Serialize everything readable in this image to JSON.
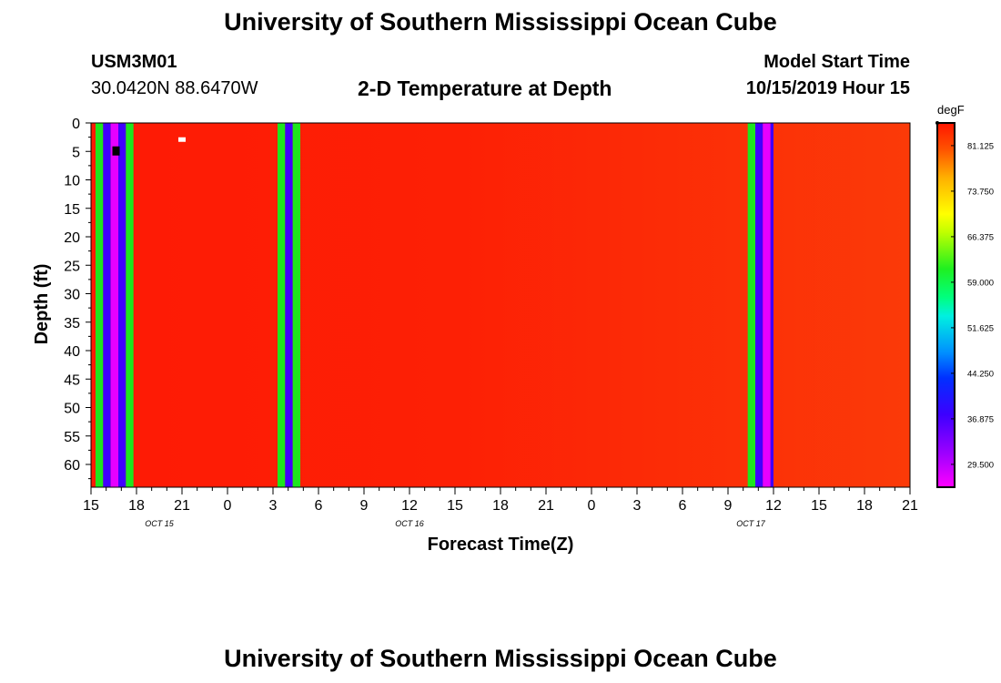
{
  "header": {
    "title": "University of Southern Mississippi Ocean Cube",
    "station_id": "USM3M01",
    "coordinates": "30.0420N 88.6470W",
    "plot_title": "2-D Temperature at Depth",
    "model_label": "Model Start Time",
    "model_time": "10/15/2019 Hour 15"
  },
  "footer": {
    "title": "University of Southern Mississippi Ocean Cube"
  },
  "chart_data": {
    "type": "heatmap",
    "title": "2-D Temperature at Depth",
    "xlabel": "Forecast Time(Z)",
    "ylabel": "Depth (ft)",
    "x_range_hours": [
      0,
      54
    ],
    "x_ticks": [
      {
        "hour": 0,
        "label": "15"
      },
      {
        "hour": 3,
        "label": "18"
      },
      {
        "hour": 6,
        "label": "21"
      },
      {
        "hour": 9,
        "label": "0"
      },
      {
        "hour": 12,
        "label": "3"
      },
      {
        "hour": 15,
        "label": "6"
      },
      {
        "hour": 18,
        "label": "9"
      },
      {
        "hour": 21,
        "label": "12"
      },
      {
        "hour": 24,
        "label": "15"
      },
      {
        "hour": 27,
        "label": "18"
      },
      {
        "hour": 30,
        "label": "21"
      },
      {
        "hour": 33,
        "label": "0"
      },
      {
        "hour": 36,
        "label": "3"
      },
      {
        "hour": 39,
        "label": "6"
      },
      {
        "hour": 42,
        "label": "9"
      },
      {
        "hour": 45,
        "label": "12"
      },
      {
        "hour": 48,
        "label": "15"
      },
      {
        "hour": 51,
        "label": "18"
      },
      {
        "hour": 54,
        "label": "21"
      }
    ],
    "date_labels": [
      {
        "hour": 4.5,
        "label": "OCT 15"
      },
      {
        "hour": 21,
        "label": "OCT 16"
      },
      {
        "hour": 43.5,
        "label": "OCT 17"
      }
    ],
    "y_range_ft": [
      0,
      64
    ],
    "y_ticks": [
      0,
      5,
      10,
      15,
      20,
      25,
      30,
      35,
      40,
      45,
      50,
      55,
      60
    ],
    "colorbar": {
      "unit": "degF",
      "min": 25.8,
      "max": 84.8,
      "labels": [
        "81.125",
        "73.750",
        "66.375",
        "59.000",
        "51.625",
        "44.250",
        "36.875",
        "29.500"
      ],
      "label_values": [
        81.125,
        73.75,
        66.375,
        59.0,
        51.625,
        44.25,
        36.875,
        29.5
      ]
    },
    "background_temperature_degF": 83.0,
    "vertical_bands": [
      {
        "start_hour": 0.3,
        "end_hour": 0.8,
        "value": 59.0
      },
      {
        "start_hour": 0.8,
        "end_hour": 1.3,
        "value": 34.0
      },
      {
        "start_hour": 1.3,
        "end_hour": 1.8,
        "value": 26.5
      },
      {
        "start_hour": 1.8,
        "end_hour": 2.3,
        "value": 34.0
      },
      {
        "start_hour": 2.3,
        "end_hour": 2.8,
        "value": 59.0
      },
      {
        "start_hour": 12.3,
        "end_hour": 12.8,
        "value": 59.0
      },
      {
        "start_hour": 12.8,
        "end_hour": 13.3,
        "value": 34.0
      },
      {
        "start_hour": 13.3,
        "end_hour": 13.8,
        "value": 59.0
      },
      {
        "start_hour": 43.3,
        "end_hour": 43.8,
        "value": 59.0
      },
      {
        "start_hour": 43.8,
        "end_hour": 44.3,
        "value": 34.0
      },
      {
        "start_hour": 44.3,
        "end_hour": 44.8,
        "value": 26.5
      },
      {
        "start_hour": 44.8,
        "end_hour": 45.0,
        "value": 34.0
      }
    ],
    "missing_cells": [
      {
        "hour": 6.0,
        "depth": 3.0,
        "color": "#ffffff"
      },
      {
        "hour": 1.65,
        "depth": 4.6,
        "color": "#000000"
      }
    ],
    "colors": {
      "background": "#fe1a05",
      "green": "#1ee61e",
      "blue": "#4000ff",
      "magenta": "#e600ff"
    }
  }
}
